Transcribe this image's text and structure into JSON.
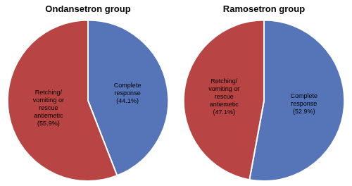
{
  "chart_data": [
    {
      "type": "pie",
      "title": "Ondansetron group",
      "categories": [
        "Complete\nresponse",
        "Retching/\nvomiting or\nrescue\nantiemetic"
      ],
      "values": [
        44.1,
        55.9
      ],
      "value_labels": [
        "(44.1%)",
        "(55.9%)"
      ],
      "colors": [
        "#5575b8",
        "#b84444"
      ],
      "data_labels": true,
      "legend": false
    },
    {
      "type": "pie",
      "title": "Ramosetron group",
      "categories": [
        "Complete\nresponse",
        "Retching/\nvomiting or\nrescue\nantiemetic"
      ],
      "values": [
        52.9,
        47.1
      ],
      "value_labels": [
        "(52.9%)",
        "(47.1%)"
      ],
      "colors": [
        "#5575b8",
        "#b84444"
      ],
      "data_labels": true,
      "legend": false
    }
  ]
}
